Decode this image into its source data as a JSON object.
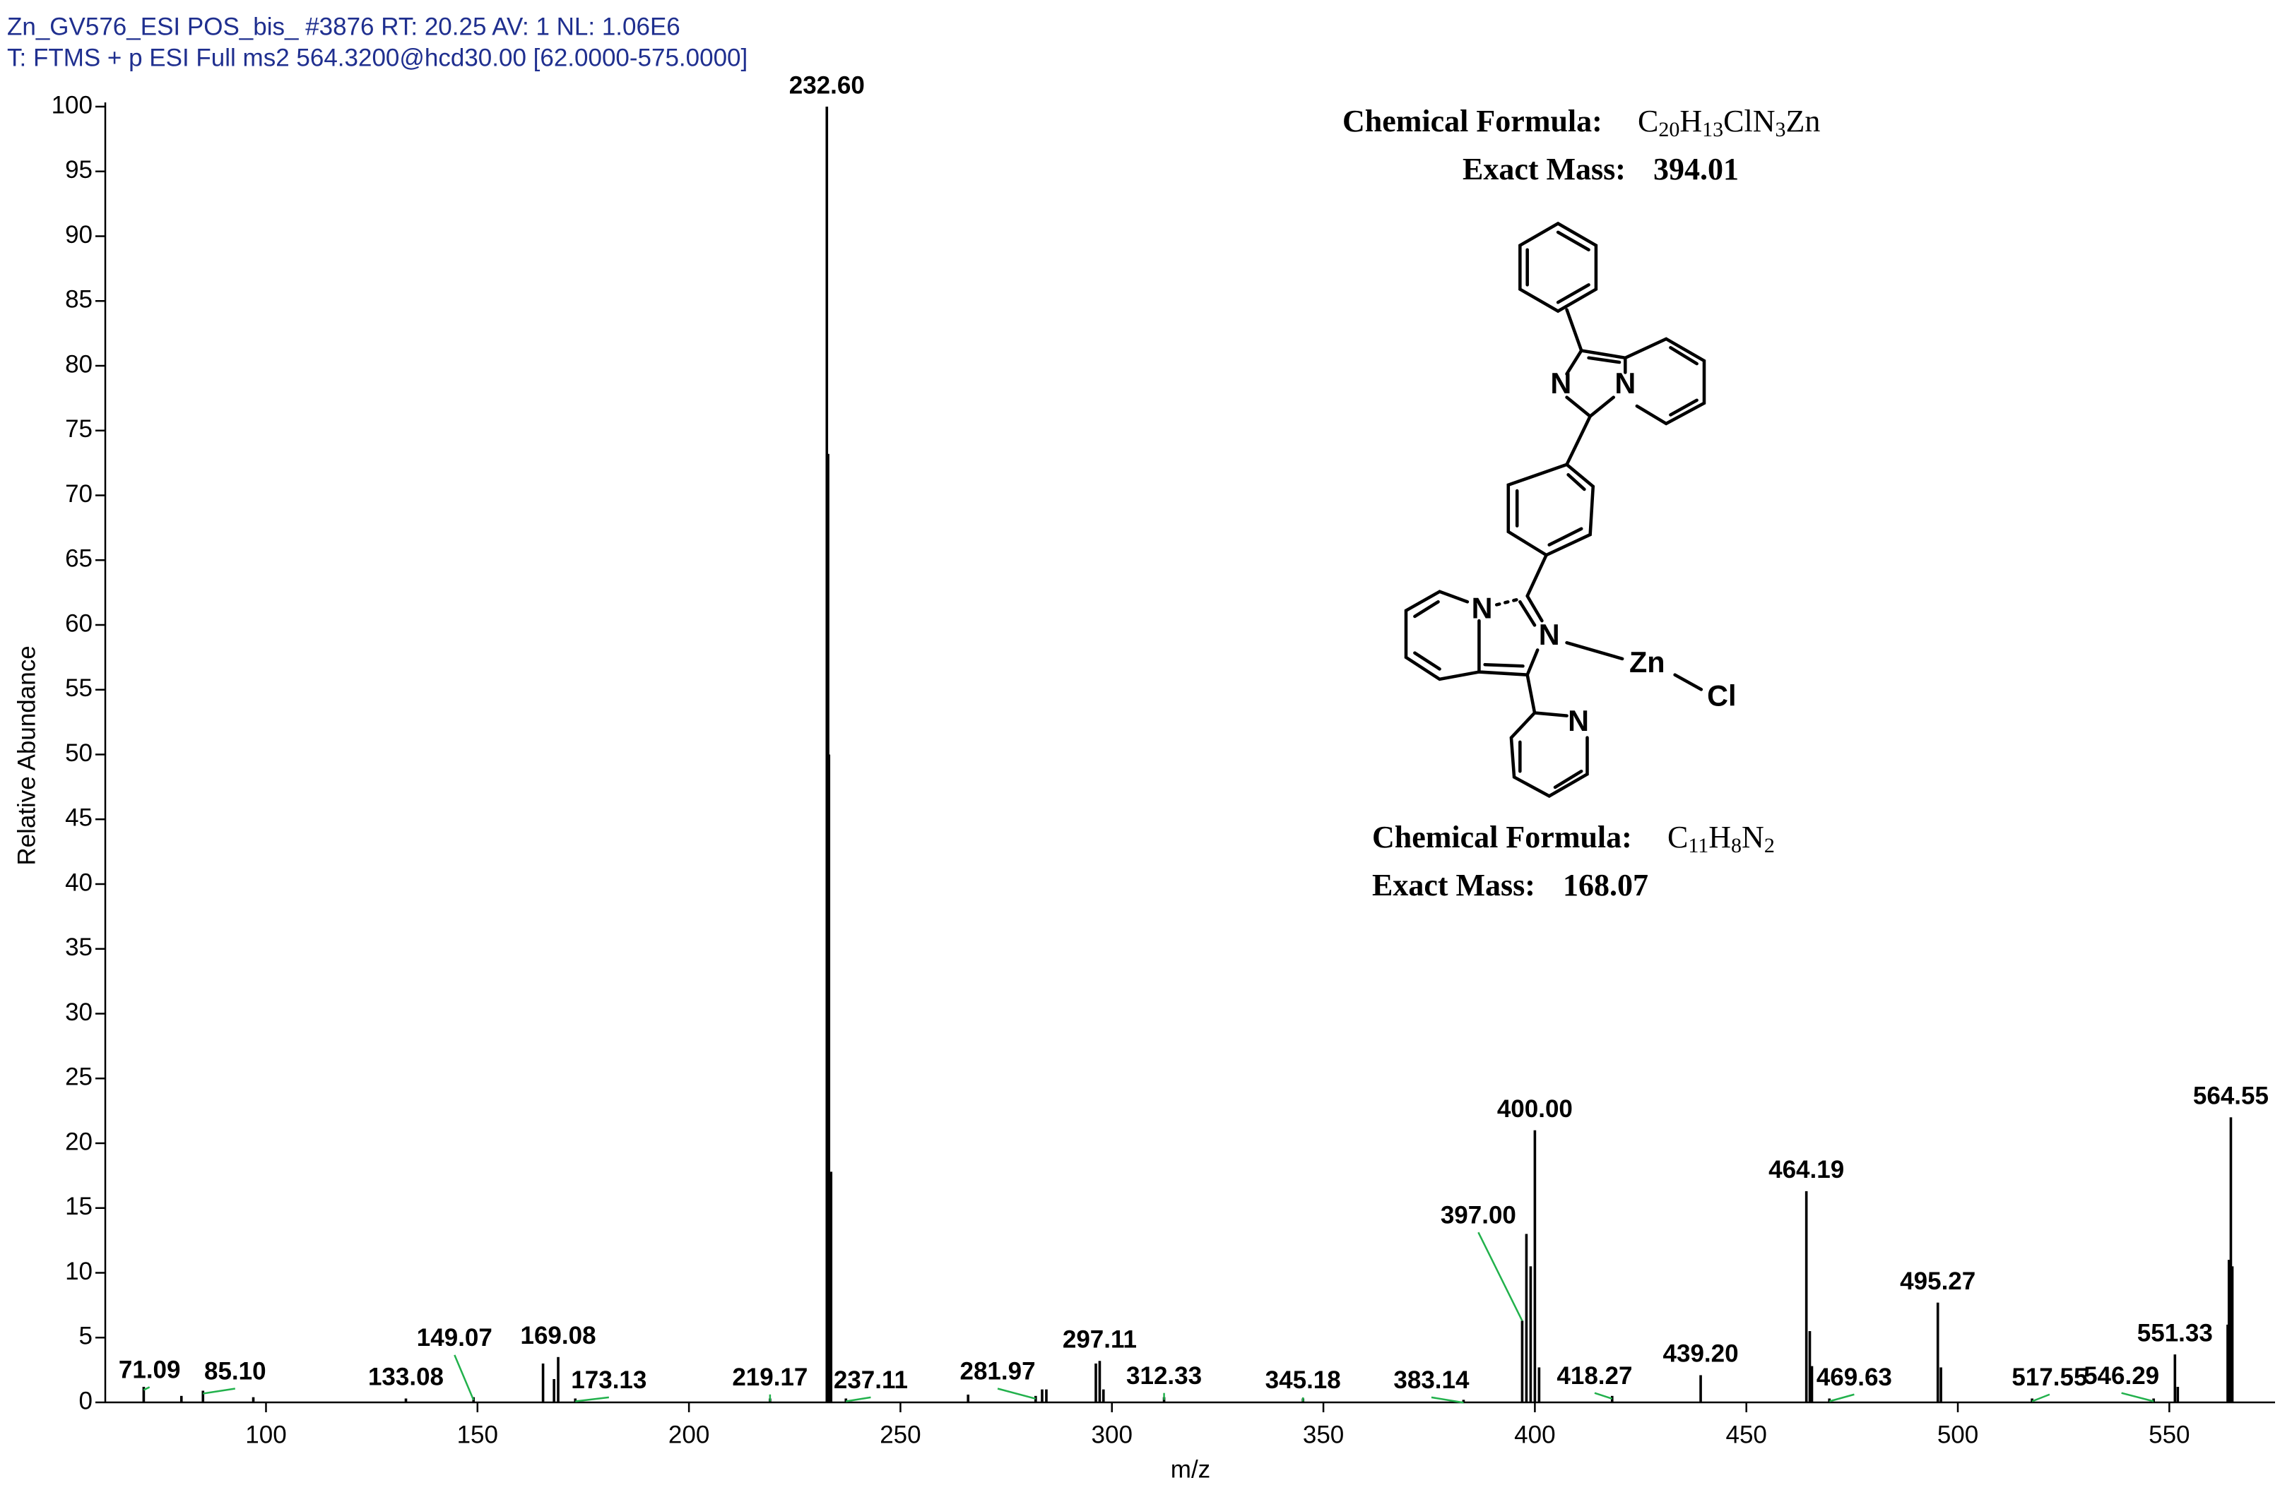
{
  "chart_data": {
    "type": "stick",
    "header": [
      "Zn_GV576_ESI POS_bis_ #3876 RT: 20.25 AV: 1 NL: 1.06E6",
      "T: FTMS + p ESI Full ms2 564.3200@hcd30.00 [62.0000-575.0000]"
    ],
    "x_label": "m/z",
    "y_label": "Relative Abundance",
    "xlim": [
      62,
      575
    ],
    "xticks": [
      100,
      150,
      200,
      250,
      300,
      350,
      400,
      450,
      500,
      550
    ],
    "ylim": [
      0,
      100
    ],
    "yticks": [
      0,
      5,
      10,
      15,
      20,
      25,
      30,
      35,
      40,
      45,
      50,
      55,
      60,
      65,
      70,
      75,
      80,
      85,
      90,
      95,
      100
    ],
    "color": "#000000",
    "leader_color": "#22b14c",
    "header_color": "#1f2f8f",
    "series": [
      {
        "x": [
          71.09,
          80,
          85.1,
          97,
          133.08,
          149.07,
          165.5,
          168.1,
          169.08,
          173.13,
          219.17,
          232.6,
          232.9,
          233.1,
          233.6,
          237.11,
          266,
          281.97,
          283.5,
          284.5,
          296.2,
          297.11,
          298,
          312.33,
          345.18,
          383.14,
          397.0,
          398,
          399,
          400.0,
          401,
          418.27,
          439.2,
          464.19,
          465,
          465.5,
          469.63,
          495.27,
          496,
          517.55,
          546.29,
          551.33,
          552,
          563.8,
          564.1,
          564.55,
          564.9
        ],
        "values": [
          1.2,
          0.5,
          0.9,
          0.4,
          0.3,
          0.4,
          3.0,
          1.8,
          3.5,
          0.3,
          0.3,
          100,
          73.2,
          50,
          17.8,
          0.3,
          0.6,
          0.5,
          1.0,
          1.0,
          3.0,
          3.2,
          1.0,
          0.4,
          0.3,
          0.2,
          6.3,
          13,
          10.5,
          21,
          2.7,
          0.5,
          2.1,
          16.3,
          5.5,
          2.8,
          0.3,
          7.7,
          2.7,
          0.3,
          0.3,
          3.7,
          1.2,
          6,
          11,
          22,
          10.5
        ],
        "x_labels": [
          "71.09",
          null,
          "85.10",
          null,
          "133.08",
          "149.07",
          null,
          null,
          "169.08",
          "173.13",
          "219.17",
          "232.60",
          null,
          null,
          null,
          "237.11",
          null,
          "281.97",
          null,
          null,
          null,
          "297.11",
          null,
          "312.33",
          "345.18",
          "383.14",
          "397.00",
          null,
          null,
          "400.00",
          null,
          "418.27",
          "439.20",
          "464.19",
          null,
          null,
          "469.63",
          "495.27",
          null,
          "517.55",
          "546.29",
          "551.33",
          null,
          null,
          null,
          "564.55",
          null
        ]
      }
    ],
    "annotations": [
      {
        "label": "Chemical Formula:",
        "formula": "C20H13ClN3Zn",
        "mass_label": "Exact Mass:",
        "mass": "394.01"
      },
      {
        "label": "Chemical Formula:",
        "formula": "C11H8N2",
        "mass_label": "Exact Mass:",
        "mass": "168.07"
      }
    ],
    "structure": {
      "atoms": [
        "N",
        "N",
        "N",
        "N",
        "Zn",
        "Cl",
        "N"
      ]
    }
  }
}
